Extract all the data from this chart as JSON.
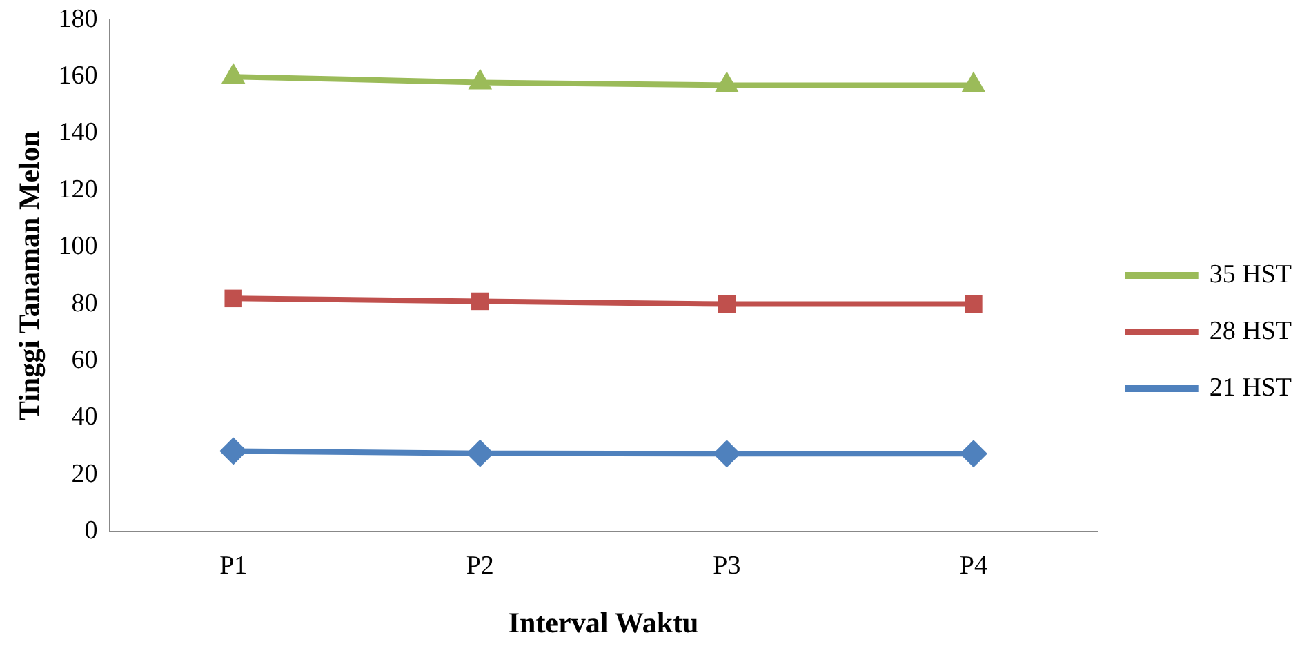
{
  "chart_data": {
    "type": "line",
    "xlabel": "Interval Waktu",
    "ylabel": "Tinggi Tanaman Melon",
    "categories": [
      "P1",
      "P2",
      "P3",
      "P4"
    ],
    "series": [
      {
        "name": "21 HST",
        "color": "#4f81bd",
        "marker": "diamond",
        "values": [
          28.3,
          27.5,
          27.4,
          27.4
        ]
      },
      {
        "name": "28 HST",
        "color": "#c0504d",
        "marker": "square",
        "values": [
          82,
          81,
          80,
          80
        ]
      },
      {
        "name": "35 HST",
        "color": "#9bbb59",
        "marker": "triangle",
        "values": [
          160,
          158,
          157,
          157
        ]
      }
    ],
    "ylim": [
      0,
      180
    ],
    "yticks": [
      0,
      20,
      40,
      60,
      80,
      100,
      120,
      140,
      160,
      180
    ],
    "grid": false,
    "legend": "right"
  }
}
